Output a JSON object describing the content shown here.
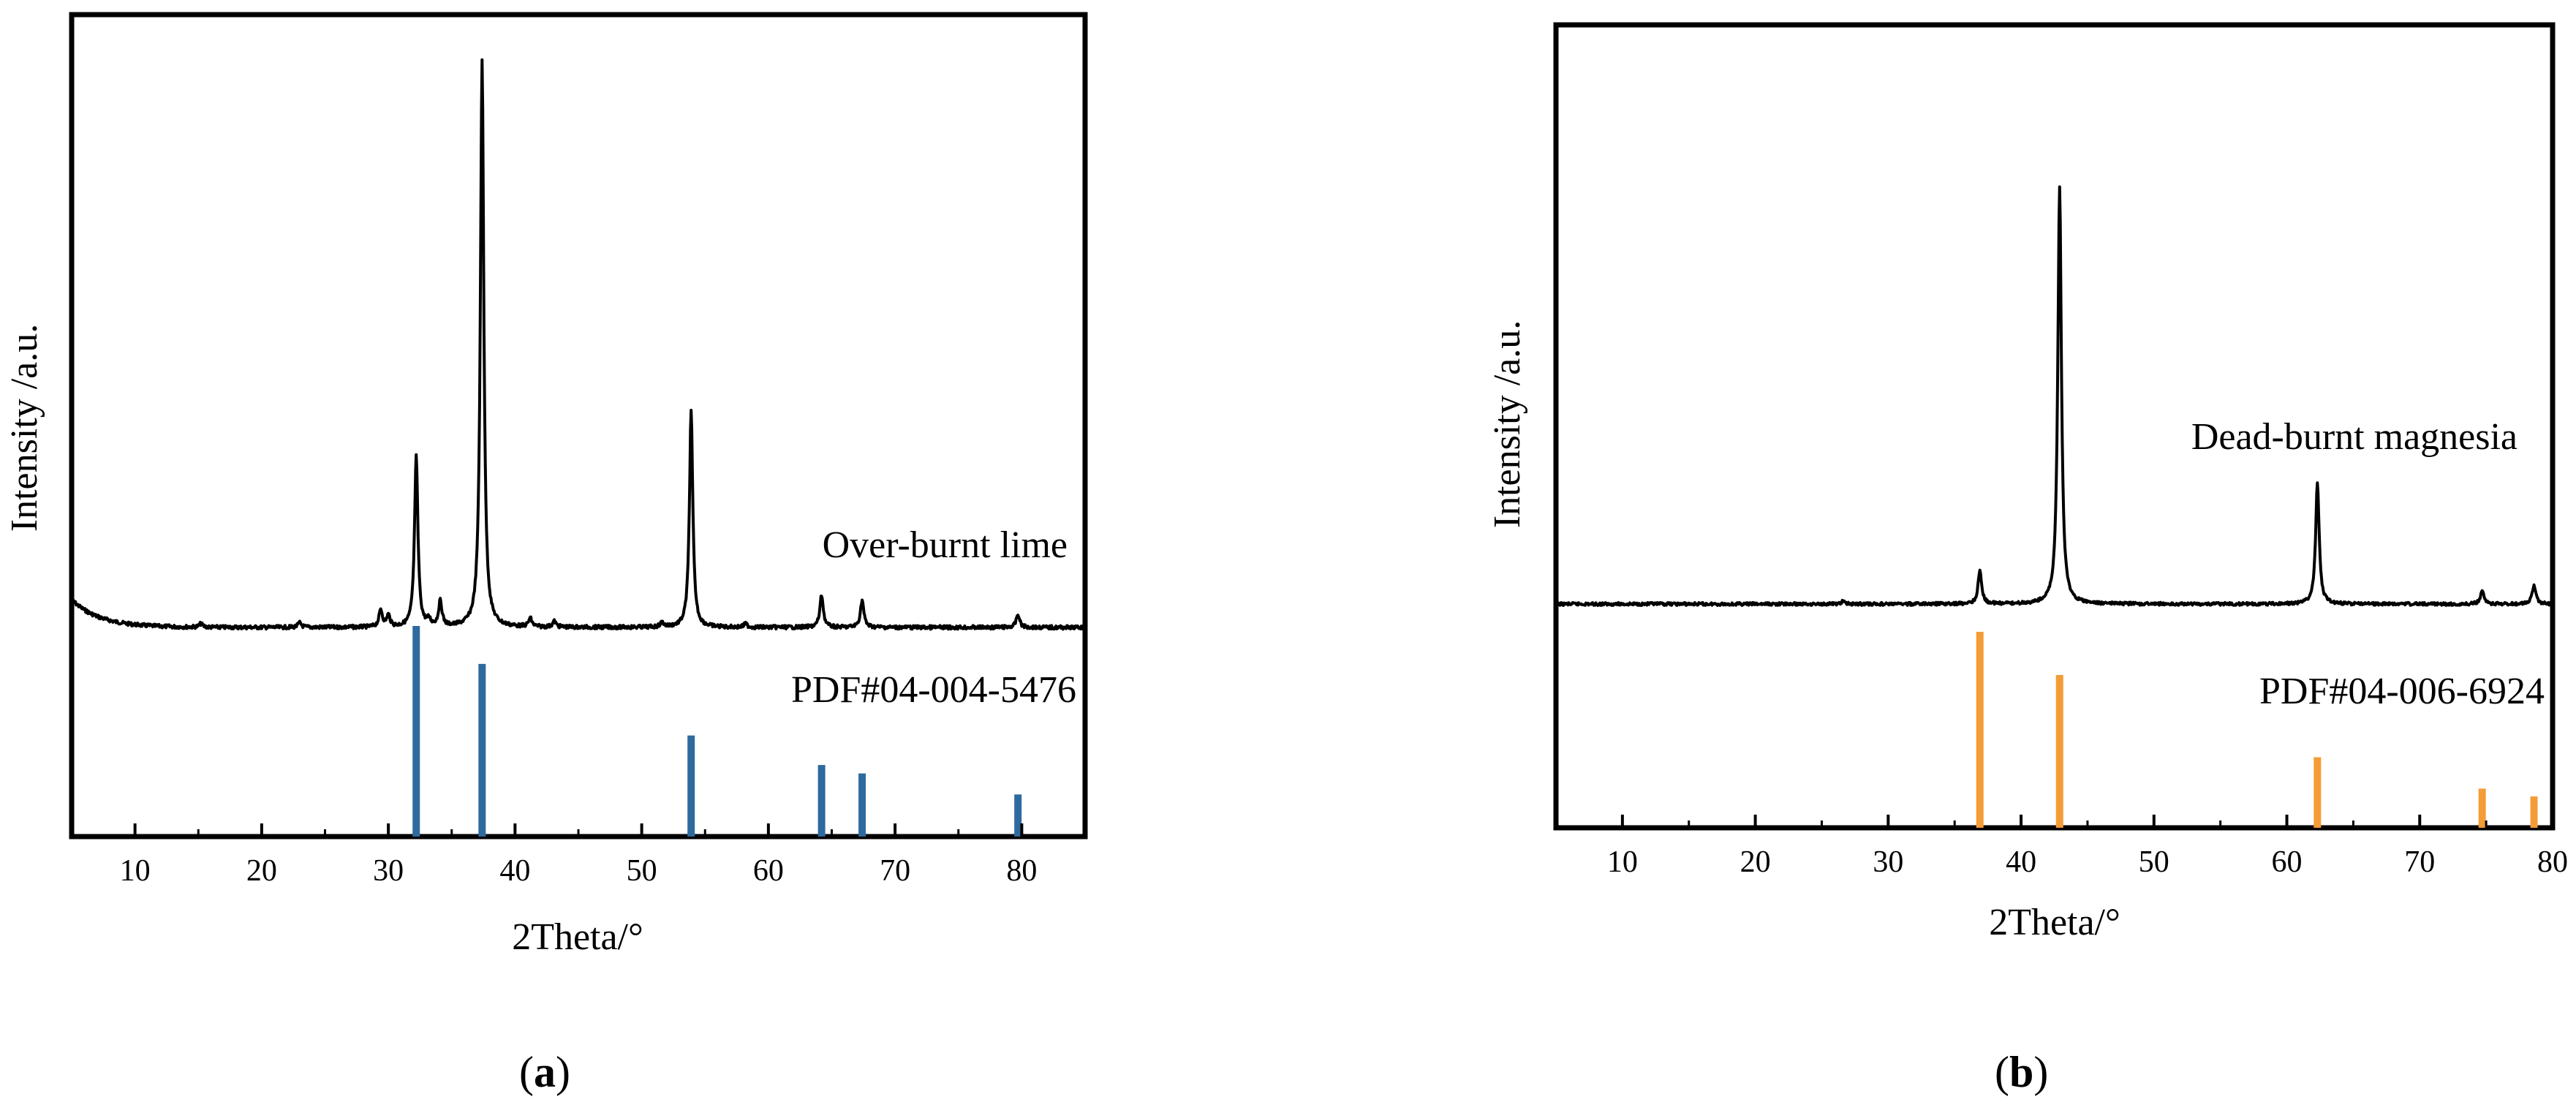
{
  "chart_data": [
    {
      "type": "line",
      "panel_label": "a",
      "xlabel": "2Theta/°",
      "ylabel": "Intensity /a.u.",
      "xlim": [
        5,
        85
      ],
      "x_ticks": [
        10,
        20,
        30,
        40,
        50,
        60,
        70,
        80
      ],
      "grid": false,
      "sample_label": "Over-burnt lime",
      "reference_label": "PDF#04-004-5476",
      "reference_color": "#2f6a9e",
      "pattern_color": "#000000",
      "peaks": [
        {
          "x": 15.2,
          "h": 0.006
        },
        {
          "x": 23.0,
          "h": 0.008
        },
        {
          "x": 29.4,
          "h": 0.03
        },
        {
          "x": 30.0,
          "h": 0.02
        },
        {
          "x": 32.2,
          "h": 0.3
        },
        {
          "x": 33.2,
          "h": 0.01
        },
        {
          "x": 34.1,
          "h": 0.044
        },
        {
          "x": 37.4,
          "h": 1.0
        },
        {
          "x": 41.2,
          "h": 0.015
        },
        {
          "x": 43.1,
          "h": 0.01
        },
        {
          "x": 51.6,
          "h": 0.008
        },
        {
          "x": 53.9,
          "h": 0.38
        },
        {
          "x": 58.2,
          "h": 0.006
        },
        {
          "x": 64.2,
          "h": 0.057
        },
        {
          "x": 67.4,
          "h": 0.048
        },
        {
          "x": 79.7,
          "h": 0.023
        }
      ],
      "reference_lines": [
        {
          "x": 32.2,
          "h": 1.0
        },
        {
          "x": 37.4,
          "h": 0.82
        },
        {
          "x": 53.9,
          "h": 0.48
        },
        {
          "x": 64.2,
          "h": 0.34
        },
        {
          "x": 67.4,
          "h": 0.3
        },
        {
          "x": 79.7,
          "h": 0.2
        }
      ]
    },
    {
      "type": "line",
      "panel_label": "b",
      "xlabel": "2Theta/°",
      "ylabel": "Intensity /a.u.",
      "xlim": [
        5,
        80
      ],
      "x_ticks": [
        10,
        20,
        30,
        40,
        50,
        60,
        70,
        80
      ],
      "grid": false,
      "sample_label": "Dead-burnt magnesia",
      "reference_label": "PDF#04-006-6924",
      "reference_color": "#f49c36",
      "pattern_color": "#000000",
      "peaks": [
        {
          "x": 26.6,
          "h": 0.006
        },
        {
          "x": 36.9,
          "h": 0.08
        },
        {
          "x": 42.9,
          "h": 1.0
        },
        {
          "x": 62.3,
          "h": 0.288
        },
        {
          "x": 74.7,
          "h": 0.03
        },
        {
          "x": 78.6,
          "h": 0.045
        }
      ],
      "reference_lines": [
        {
          "x": 36.9,
          "h": 1.0
        },
        {
          "x": 42.9,
          "h": 0.78
        },
        {
          "x": 62.3,
          "h": 0.36
        },
        {
          "x": 74.7,
          "h": 0.2
        },
        {
          "x": 78.6,
          "h": 0.16
        }
      ]
    }
  ]
}
